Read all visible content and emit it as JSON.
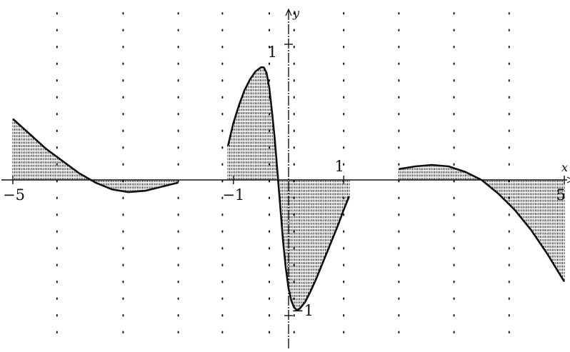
{
  "chart_data": {
    "type": "line",
    "title": "",
    "xlabel": "x",
    "ylabel": "y",
    "xlim": [
      -5,
      5
    ],
    "ylim": [
      -1.3,
      1.3
    ],
    "grid": false,
    "legend": "none",
    "colors": {
      "ink": "#111111",
      "background": "#ffffff"
    },
    "x_tick_labels": [
      {
        "value": -5,
        "text": "−5"
      },
      {
        "value": -1,
        "text": "−1"
      },
      {
        "value": 1,
        "text": "1"
      },
      {
        "value": 5,
        "text": "5"
      }
    ],
    "y_tick_labels": [
      {
        "value": 1,
        "text": "1"
      },
      {
        "value": -1,
        "text": "−1"
      }
    ],
    "series": [
      {
        "style": "dense-vertical-hatching",
        "segments": [
          {
            "x": [
              -5.0,
              -4.7,
              -4.4,
              -4.1,
              -3.8,
              -3.5,
              -3.2,
              -2.9,
              -2.6,
              -2.3,
              -2.0
            ],
            "y": [
              0.45,
              0.34,
              0.23,
              0.14,
              0.05,
              -0.02,
              -0.07,
              -0.09,
              -0.08,
              -0.05,
              -0.02
            ]
          },
          {
            "x": [
              -1.1,
              -1.0,
              -0.9,
              -0.8,
              -0.7,
              -0.6,
              -0.5,
              -0.45,
              -0.4,
              -0.35,
              -0.3,
              -0.25,
              -0.2,
              -0.15,
              -0.1,
              -0.05,
              0.0,
              0.05,
              0.1,
              0.15,
              0.2,
              0.3,
              0.4,
              0.5,
              0.6,
              0.7,
              0.8,
              0.9,
              1.0,
              1.1
            ],
            "y": [
              0.25,
              0.42,
              0.55,
              0.66,
              0.74,
              0.8,
              0.83,
              0.83,
              0.79,
              0.68,
              0.5,
              0.3,
              0.05,
              -0.2,
              -0.45,
              -0.65,
              -0.8,
              -0.89,
              -0.94,
              -0.96,
              -0.95,
              -0.9,
              -0.82,
              -0.73,
              -0.63,
              -0.53,
              -0.43,
              -0.33,
              -0.22,
              -0.12
            ]
          },
          {
            "x": [
              2.0,
              2.3,
              2.6,
              2.9,
              3.2,
              3.5,
              3.8,
              4.1,
              4.4,
              4.7,
              5.0
            ],
            "y": [
              0.08,
              0.1,
              0.11,
              0.1,
              0.06,
              0.0,
              -0.1,
              -0.22,
              -0.37,
              -0.55,
              -0.75
            ]
          }
        ]
      }
    ],
    "dotted_lines": [
      -4.2,
      -3.0,
      -2.0,
      -1.2,
      -0.35,
      0.1,
      1.0,
      2.0,
      3.0,
      4.0
    ]
  }
}
